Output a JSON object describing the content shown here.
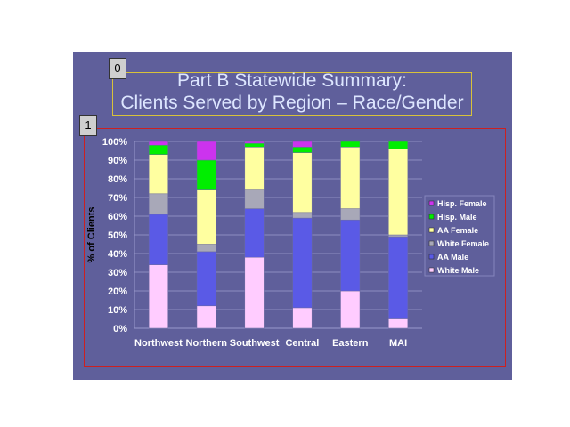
{
  "slide": {
    "title_line1": "Part B Statewide Summary:",
    "title_line2": "Clients Served by Region – Race/Gender",
    "tag0": "0",
    "tag1": "1"
  },
  "chart_data": {
    "type": "bar",
    "stacked": true,
    "title": "",
    "xlabel": "",
    "ylabel": "% of Clients",
    "ylim": [
      0,
      100
    ],
    "yticks": [
      "0%",
      "10%",
      "20%",
      "30%",
      "40%",
      "50%",
      "60%",
      "70%",
      "80%",
      "90%",
      "100%"
    ],
    "categories": [
      "Northwest",
      "Northern",
      "Southwest",
      "Central",
      "Eastern",
      "MAI"
    ],
    "grid": true,
    "legend_position": "right",
    "series": [
      {
        "name": "White Male",
        "color": "#ffccff",
        "values": [
          34,
          12,
          38,
          11,
          20,
          5
        ]
      },
      {
        "name": "AA Male",
        "color": "#5a5ae6",
        "values": [
          27,
          29,
          26,
          48,
          38,
          44
        ]
      },
      {
        "name": "White Female",
        "color": "#a8a8b8",
        "values": [
          11,
          4,
          10,
          3,
          6,
          1
        ]
      },
      {
        "name": "AA Female",
        "color": "#ffffa0",
        "values": [
          21,
          29,
          23,
          32,
          33,
          46
        ]
      },
      {
        "name": "Hisp. Male",
        "color": "#00ee00",
        "values": [
          5,
          16,
          2,
          3,
          3,
          4
        ]
      },
      {
        "name": "Hisp. Female",
        "color": "#cc33ee",
        "values": [
          2,
          10,
          1,
          3,
          0,
          0
        ]
      }
    ],
    "legend_order": [
      "Hisp. Female",
      "Hisp. Male",
      "AA Female",
      "White Female",
      "AA Male",
      "White Male"
    ]
  }
}
